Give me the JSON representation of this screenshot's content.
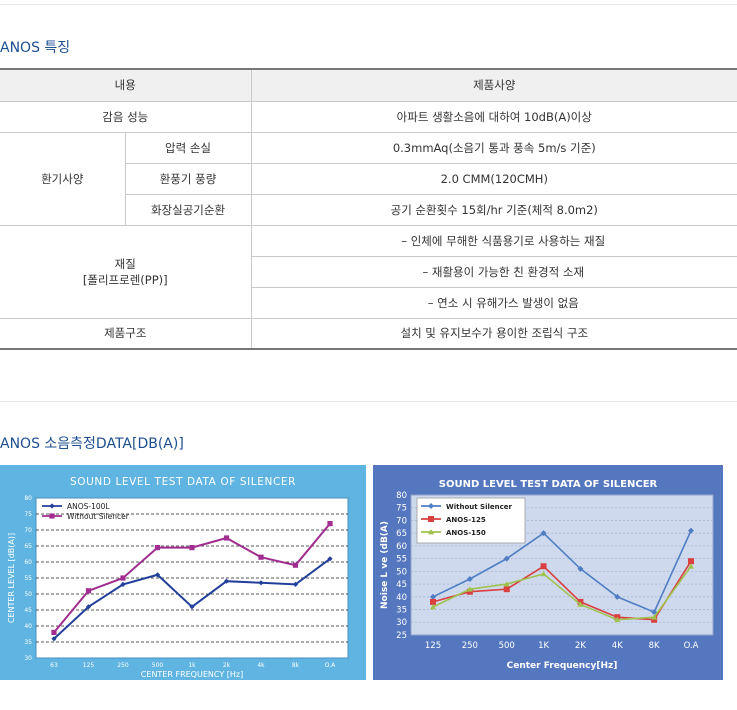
{
  "section1": {
    "title": "ANOS 특징"
  },
  "spec_table": {
    "header": {
      "col1": "내용",
      "col2": "제품사양"
    },
    "rows": {
      "sound": {
        "label": "감음 성능",
        "value": "아파트 생활소음에 대하여 10dB(A)이상"
      },
      "vent": {
        "label": "환기사양",
        "items": [
          {
            "label": "압력 손실",
            "value": "0.3mmAq(소음기 통과 풍속 5m/s 기준)"
          },
          {
            "label": "환풍기 풍량",
            "value": "2.0 CMM(120CMH)"
          },
          {
            "label": "화장실공기순환",
            "value": "공기 순환횟수 15회/hr 기준(체적 8.0m2)"
          }
        ]
      },
      "material": {
        "label_line1": "재질",
        "label_line2": "[폴리프로렌(PP)]",
        "items": [
          "– 인체에 무해한 식품용기로 사용하는 재질",
          "– 재활용이 가능한 친 환경적 소재",
          "– 연소 시 유해가스 발생이 없음"
        ]
      },
      "structure": {
        "label": "제품구조",
        "value": "설치 및 유지보수가 용이한 조립식 구조"
      }
    }
  },
  "section2": {
    "title": "ANOS 소음측정DATA[DB(A)]"
  },
  "chart_data": [
    {
      "type": "line",
      "title": "SOUND LEVEL TEST DATA OF SILENCER",
      "xlabel": "CENTER FREQUENCY [Hz]",
      "ylabel": "CENTER LEVEL [dB(A)]",
      "categories": [
        "63",
        "125",
        "250",
        "500",
        "1k",
        "2k",
        "4k",
        "8k",
        "O.A"
      ],
      "ylim": [
        30,
        80
      ],
      "yticks": [
        "30",
        "35",
        "40",
        "45",
        "50",
        "55",
        "60",
        "65",
        "70",
        "75",
        "80"
      ],
      "grid": true,
      "legend": "top-left",
      "colors": {
        "background": "#5fb4e2",
        "plot": "#ffffff",
        "text": "#ffffff"
      },
      "series": [
        {
          "name": "ANOS-100L",
          "color": "#223f9a",
          "values": [
            36,
            46,
            53,
            56,
            46,
            54,
            53.5,
            53,
            61
          ]
        },
        {
          "name": "Without Silencer",
          "color": "#a02d8f",
          "values": [
            38,
            51,
            55,
            64.5,
            64.5,
            67.5,
            61.5,
            59,
            72
          ]
        }
      ]
    },
    {
      "type": "line",
      "title": "SOUND LEVEL TEST DATA OF SILENCER",
      "xlabel": "Center Frequency[Hz]",
      "ylabel": "Noise L  ve (dB(A)",
      "categories": [
        "125",
        "250",
        "500",
        "1K",
        "2K",
        "4K",
        "8K",
        "O.A"
      ],
      "ylim": [
        25,
        80
      ],
      "yticks": [
        "25",
        "30",
        "35",
        "40",
        "45",
        "50",
        "55",
        "60",
        "65",
        "70",
        "75",
        "80"
      ],
      "grid": true,
      "legend": "top-left",
      "colors": {
        "background": "#5577bf",
        "plot": "#cfd9ee",
        "text": "#ffffff"
      },
      "series": [
        {
          "name": "Without Silencer",
          "color": "#4f7ec4",
          "values": [
            40,
            47,
            55,
            65,
            51,
            40,
            34,
            66
          ]
        },
        {
          "name": "ANOS-125",
          "color": "#d9403f",
          "values": [
            38,
            42,
            43,
            52,
            38,
            32,
            31,
            54
          ]
        },
        {
          "name": "ANOS-150",
          "color": "#9fc34f",
          "values": [
            36,
            43,
            45,
            49,
            37,
            31,
            32,
            52
          ]
        }
      ]
    }
  ]
}
